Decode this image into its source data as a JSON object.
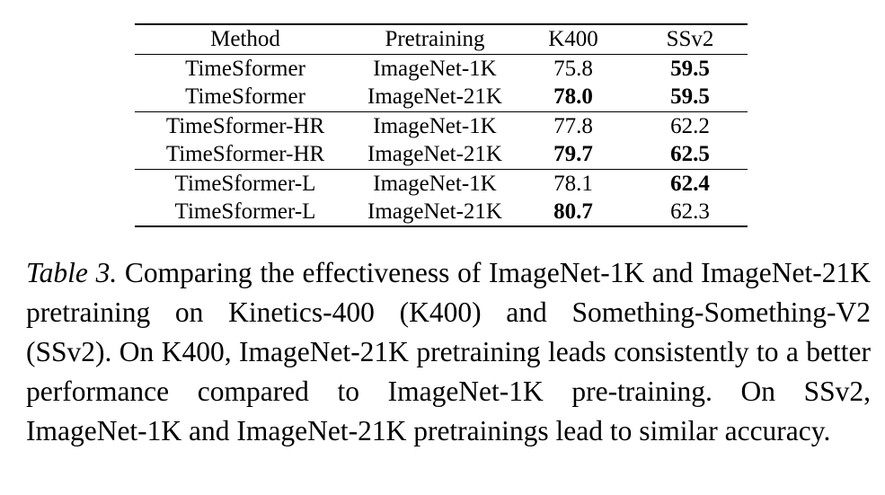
{
  "table": {
    "headers": [
      "Method",
      "Pretraining",
      "K400",
      "SSv2"
    ],
    "rows": [
      {
        "method": "TimeSformer",
        "pretraining": "ImageNet-1K",
        "k400": "75.8",
        "ssv2": "59.5"
      },
      {
        "method": "TimeSformer",
        "pretraining": "ImageNet-21K",
        "k400": "78.0",
        "ssv2": "59.5"
      },
      {
        "method": "TimeSformer-HR",
        "pretraining": "ImageNet-1K",
        "k400": "77.8",
        "ssv2": "62.2"
      },
      {
        "method": "TimeSformer-HR",
        "pretraining": "ImageNet-21K",
        "k400": "79.7",
        "ssv2": "62.5"
      },
      {
        "method": "TimeSformer-L",
        "pretraining": "ImageNet-1K",
        "k400": "78.1",
        "ssv2": "62.4"
      },
      {
        "method": "TimeSformer-L",
        "pretraining": "ImageNet-21K",
        "k400": "80.7",
        "ssv2": "62.3"
      }
    ]
  },
  "caption": {
    "label": "Table 3.",
    "text": "Comparing the effectiveness of ImageNet-1K and ImageNet-21K pretraining on Kinetics-400 (K400) and Something-Something-V2 (SSv2). On K400, ImageNet-21K pretraining leads consistently to a better performance compared to ImageNet-1K pre-training. On SSv2, ImageNet-1K and ImageNet-21K pretrainings lead to similar accuracy."
  }
}
